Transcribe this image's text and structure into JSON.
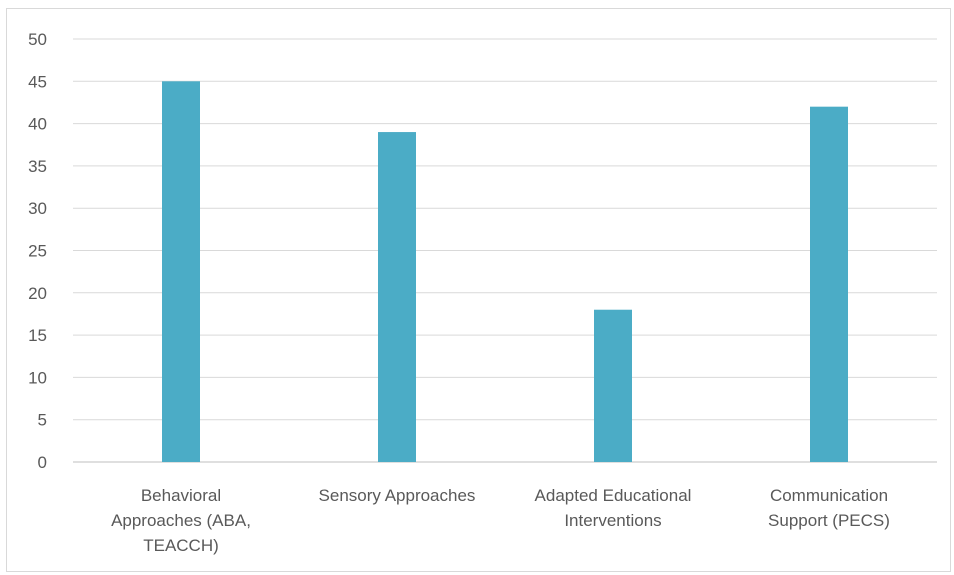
{
  "chart_data": {
    "type": "bar",
    "categories": [
      [
        "Behavioral",
        "Approaches (ABA,",
        "TEACCH)"
      ],
      [
        "Sensory Approaches"
      ],
      [
        "Adapted Educational",
        "Interventions"
      ],
      [
        "Communication",
        "Support (PECS)"
      ]
    ],
    "values": [
      45,
      39,
      18,
      42
    ],
    "ylim": [
      0,
      50
    ],
    "yticks": [
      0,
      5,
      10,
      15,
      20,
      25,
      30,
      35,
      40,
      45,
      50
    ],
    "grid": true,
    "legend": "none",
    "bar_color": "#4bacc6",
    "title": "",
    "xlabel": "",
    "ylabel": ""
  }
}
